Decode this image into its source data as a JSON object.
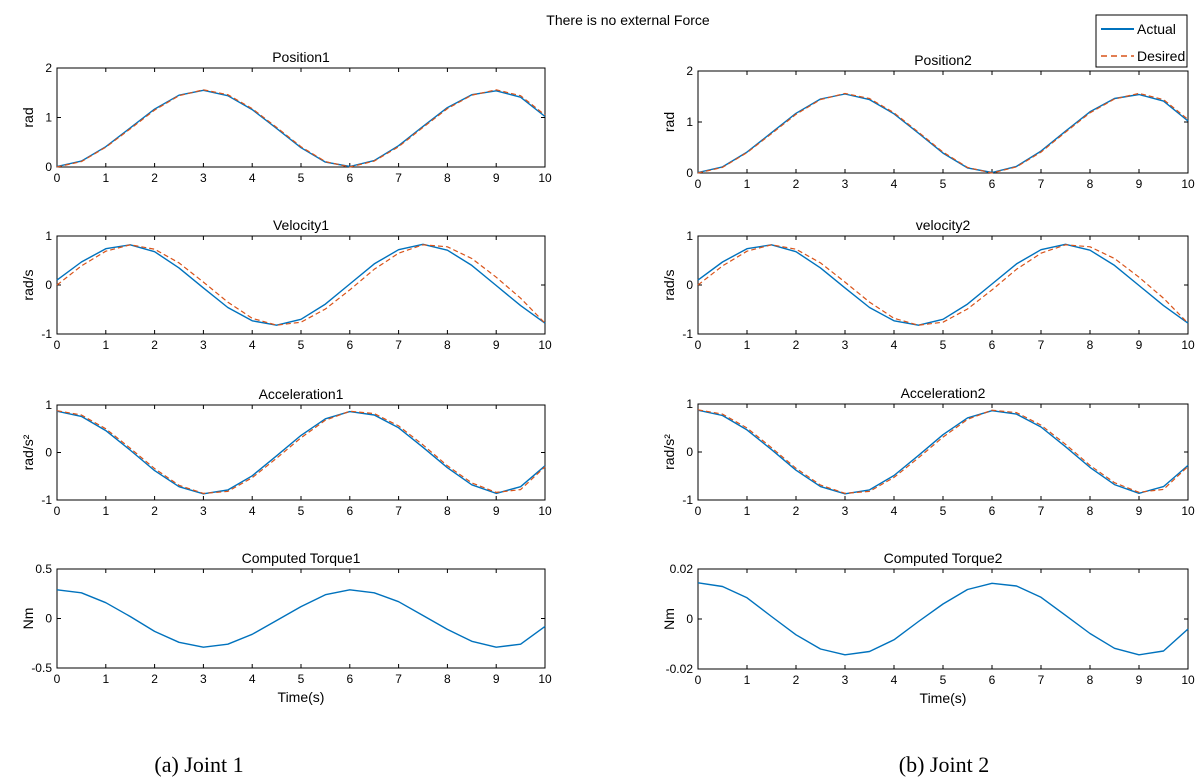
{
  "figure_title": "There is no external Force",
  "captions": [
    "(a) Joint 1",
    "(b) Joint 2"
  ],
  "legend": [
    "Actual",
    "Desired"
  ],
  "colors": {
    "actual": "#0072BD",
    "desired": "#D95319",
    "axis": "#000000"
  },
  "chart_data": [
    {
      "type": "line",
      "title": "Position1",
      "xlabel": "",
      "ylabel": "rad",
      "xlim": [
        0,
        10
      ],
      "ylim": [
        0,
        2
      ],
      "xticks": [
        0,
        1,
        2,
        3,
        4,
        5,
        6,
        7,
        8,
        9,
        10
      ],
      "yticks": [
        0,
        1,
        2
      ],
      "ytick_labels": [
        "0",
        "1",
        "2"
      ],
      "series": [
        {
          "name": "Actual",
          "style": "solid",
          "x": [
            0,
            0.5,
            1,
            1.5,
            2,
            2.5,
            3,
            3.5,
            4,
            4.5,
            5,
            5.5,
            6,
            6.5,
            7,
            7.5,
            8,
            8.5,
            9,
            9.5,
            10
          ],
          "y": [
            0.01,
            0.12,
            0.41,
            0.79,
            1.17,
            1.45,
            1.55,
            1.44,
            1.16,
            0.78,
            0.39,
            0.1,
            0.01,
            0.13,
            0.43,
            0.82,
            1.2,
            1.46,
            1.54,
            1.41,
            1.02
          ]
        },
        {
          "name": "Desired",
          "style": "dashed",
          "x": [
            0,
            0.5,
            1,
            1.5,
            2,
            2.5,
            3,
            3.5,
            4,
            4.5,
            5,
            5.5,
            6,
            6.5,
            7,
            7.5,
            8,
            8.5,
            9,
            9.5,
            10
          ],
          "y": [
            0.0,
            0.11,
            0.4,
            0.77,
            1.15,
            1.44,
            1.56,
            1.46,
            1.18,
            0.8,
            0.41,
            0.11,
            0.0,
            0.12,
            0.41,
            0.8,
            1.18,
            1.45,
            1.56,
            1.44,
            1.05
          ]
        }
      ]
    },
    {
      "type": "line",
      "title": "Velocity1",
      "xlabel": "",
      "ylabel": "rad/s",
      "xlim": [
        0,
        10
      ],
      "ylim": [
        -1,
        1
      ],
      "xticks": [
        0,
        1,
        2,
        3,
        4,
        5,
        6,
        7,
        8,
        9,
        10
      ],
      "yticks": [
        -1,
        0,
        1
      ],
      "ytick_labels": [
        "-1",
        "0",
        "1"
      ],
      "series": [
        {
          "name": "Actual",
          "style": "solid",
          "x": [
            0,
            0.5,
            1,
            1.5,
            2,
            2.5,
            3,
            3.5,
            4,
            4.5,
            5,
            5.5,
            6,
            6.5,
            7,
            7.5,
            8,
            8.5,
            9,
            9.5,
            10
          ],
          "y": [
            0.1,
            0.47,
            0.74,
            0.82,
            0.68,
            0.35,
            -0.06,
            -0.46,
            -0.73,
            -0.82,
            -0.7,
            -0.39,
            0.02,
            0.43,
            0.72,
            0.83,
            0.71,
            0.4,
            -0.01,
            -0.42,
            -0.78
          ]
        },
        {
          "name": "Desired",
          "style": "dashed",
          "x": [
            0,
            0.5,
            1,
            1.5,
            2,
            2.5,
            3,
            3.5,
            4,
            4.5,
            5,
            5.5,
            6,
            6.5,
            7,
            7.5,
            8,
            8.5,
            9,
            9.5,
            10
          ],
          "y": [
            0.0,
            0.39,
            0.69,
            0.82,
            0.73,
            0.45,
            0.06,
            -0.35,
            -0.68,
            -0.82,
            -0.76,
            -0.49,
            -0.1,
            0.32,
            0.65,
            0.82,
            0.78,
            0.54,
            0.16,
            -0.27,
            -0.78
          ]
        }
      ]
    },
    {
      "type": "line",
      "title": "Acceleration1",
      "xlabel": "",
      "ylabel": "rad/s²",
      "xlim": [
        0,
        10
      ],
      "ylim": [
        -1,
        1
      ],
      "xticks": [
        0,
        1,
        2,
        3,
        4,
        5,
        6,
        7,
        8,
        9,
        10
      ],
      "yticks": [
        -1,
        0,
        1
      ],
      "ytick_labels": [
        "-1",
        "0",
        "1"
      ],
      "series": [
        {
          "name": "Actual",
          "style": "solid",
          "x": [
            0,
            0.5,
            1,
            1.5,
            2,
            2.5,
            3,
            3.5,
            4,
            4.5,
            5,
            5.5,
            6,
            6.5,
            7,
            7.5,
            8,
            8.5,
            9,
            9.5,
            10
          ],
          "y": [
            0.87,
            0.76,
            0.46,
            0.05,
            -0.38,
            -0.72,
            -0.87,
            -0.79,
            -0.49,
            -0.07,
            0.36,
            0.71,
            0.86,
            0.79,
            0.52,
            0.11,
            -0.32,
            -0.68,
            -0.86,
            -0.72,
            -0.28
          ]
        },
        {
          "name": "Desired",
          "style": "dashed",
          "x": [
            0,
            0.5,
            1,
            1.5,
            2,
            2.5,
            3,
            3.5,
            4,
            4.5,
            5,
            5.5,
            6,
            6.5,
            7,
            7.5,
            8,
            8.5,
            9,
            9.5,
            10
          ],
          "y": [
            0.88,
            0.79,
            0.5,
            0.09,
            -0.34,
            -0.69,
            -0.86,
            -0.82,
            -0.53,
            -0.12,
            0.31,
            0.68,
            0.87,
            0.82,
            0.56,
            0.16,
            -0.28,
            -0.64,
            -0.84,
            -0.78,
            -0.3
          ]
        }
      ]
    },
    {
      "type": "line",
      "title": "Computed Torque1",
      "xlabel": "Time(s)",
      "ylabel": "Nm",
      "xlim": [
        0,
        10
      ],
      "ylim": [
        -0.5,
        0.5
      ],
      "xticks": [
        0,
        1,
        2,
        3,
        4,
        5,
        6,
        7,
        8,
        9,
        10
      ],
      "yticks": [
        -0.5,
        0,
        0.5
      ],
      "ytick_labels": [
        "-0.5",
        "0",
        "0.5"
      ],
      "series": [
        {
          "name": "Actual",
          "style": "solid",
          "x": [
            0,
            0.5,
            1,
            1.5,
            2,
            2.5,
            3,
            3.5,
            4,
            4.5,
            5,
            5.5,
            6,
            6.5,
            7,
            7.5,
            8,
            8.5,
            9,
            9.5,
            10
          ],
          "y": [
            0.29,
            0.26,
            0.16,
            0.02,
            -0.13,
            -0.24,
            -0.29,
            -0.26,
            -0.16,
            -0.02,
            0.12,
            0.24,
            0.29,
            0.26,
            0.17,
            0.03,
            -0.11,
            -0.23,
            -0.29,
            -0.26,
            -0.08
          ]
        }
      ]
    },
    {
      "type": "line",
      "title": "Position2",
      "xlabel": "",
      "ylabel": "rad",
      "xlim": [
        0,
        10
      ],
      "ylim": [
        0,
        2
      ],
      "xticks": [
        0,
        1,
        2,
        3,
        4,
        5,
        6,
        7,
        8,
        9,
        10
      ],
      "yticks": [
        0,
        1,
        2
      ],
      "ytick_labels": [
        "0",
        "1",
        "2"
      ],
      "series": [
        {
          "name": "Actual",
          "style": "solid",
          "x": [
            0,
            0.5,
            1,
            1.5,
            2,
            2.5,
            3,
            3.5,
            4,
            4.5,
            5,
            5.5,
            6,
            6.5,
            7,
            7.5,
            8,
            8.5,
            9,
            9.5,
            10
          ],
          "y": [
            0.01,
            0.12,
            0.41,
            0.79,
            1.17,
            1.45,
            1.55,
            1.44,
            1.16,
            0.78,
            0.39,
            0.1,
            0.01,
            0.13,
            0.43,
            0.82,
            1.2,
            1.46,
            1.54,
            1.41,
            1.02
          ]
        },
        {
          "name": "Desired",
          "style": "dashed",
          "x": [
            0,
            0.5,
            1,
            1.5,
            2,
            2.5,
            3,
            3.5,
            4,
            4.5,
            5,
            5.5,
            6,
            6.5,
            7,
            7.5,
            8,
            8.5,
            9,
            9.5,
            10
          ],
          "y": [
            0.0,
            0.11,
            0.4,
            0.77,
            1.15,
            1.44,
            1.56,
            1.46,
            1.18,
            0.8,
            0.41,
            0.11,
            0.0,
            0.12,
            0.41,
            0.8,
            1.18,
            1.45,
            1.56,
            1.44,
            1.05
          ]
        }
      ]
    },
    {
      "type": "line",
      "title": "velocity2",
      "xlabel": "",
      "ylabel": "rad/s",
      "xlim": [
        0,
        10
      ],
      "ylim": [
        -1,
        1
      ],
      "xticks": [
        0,
        1,
        2,
        3,
        4,
        5,
        6,
        7,
        8,
        9,
        10
      ],
      "yticks": [
        -1,
        0,
        1
      ],
      "ytick_labels": [
        "-1",
        "0",
        "1"
      ],
      "series": [
        {
          "name": "Actual",
          "style": "solid",
          "x": [
            0,
            0.5,
            1,
            1.5,
            2,
            2.5,
            3,
            3.5,
            4,
            4.5,
            5,
            5.5,
            6,
            6.5,
            7,
            7.5,
            8,
            8.5,
            9,
            9.5,
            10
          ],
          "y": [
            0.1,
            0.47,
            0.74,
            0.82,
            0.68,
            0.35,
            -0.06,
            -0.46,
            -0.73,
            -0.82,
            -0.7,
            -0.39,
            0.02,
            0.43,
            0.72,
            0.83,
            0.71,
            0.4,
            -0.01,
            -0.42,
            -0.78
          ]
        },
        {
          "name": "Desired",
          "style": "dashed",
          "x": [
            0,
            0.5,
            1,
            1.5,
            2,
            2.5,
            3,
            3.5,
            4,
            4.5,
            5,
            5.5,
            6,
            6.5,
            7,
            7.5,
            8,
            8.5,
            9,
            9.5,
            10
          ],
          "y": [
            0.0,
            0.39,
            0.69,
            0.82,
            0.73,
            0.45,
            0.06,
            -0.35,
            -0.68,
            -0.82,
            -0.76,
            -0.49,
            -0.1,
            0.32,
            0.65,
            0.82,
            0.78,
            0.54,
            0.16,
            -0.27,
            -0.78
          ]
        }
      ]
    },
    {
      "type": "line",
      "title": "Acceleration2",
      "xlabel": "",
      "ylabel": "rad/s²",
      "xlim": [
        0,
        10
      ],
      "ylim": [
        -1,
        1
      ],
      "xticks": [
        0,
        1,
        2,
        3,
        4,
        5,
        6,
        7,
        8,
        9,
        10
      ],
      "yticks": [
        -1,
        0,
        1
      ],
      "ytick_labels": [
        "-1",
        "0",
        "1"
      ],
      "series": [
        {
          "name": "Actual",
          "style": "solid",
          "x": [
            0,
            0.5,
            1,
            1.5,
            2,
            2.5,
            3,
            3.5,
            4,
            4.5,
            5,
            5.5,
            6,
            6.5,
            7,
            7.5,
            8,
            8.5,
            9,
            9.5,
            10
          ],
          "y": [
            0.87,
            0.76,
            0.46,
            0.05,
            -0.38,
            -0.72,
            -0.87,
            -0.79,
            -0.49,
            -0.07,
            0.36,
            0.71,
            0.86,
            0.79,
            0.52,
            0.11,
            -0.32,
            -0.68,
            -0.86,
            -0.72,
            -0.28
          ]
        },
        {
          "name": "Desired",
          "style": "dashed",
          "x": [
            0,
            0.5,
            1,
            1.5,
            2,
            2.5,
            3,
            3.5,
            4,
            4.5,
            5,
            5.5,
            6,
            6.5,
            7,
            7.5,
            8,
            8.5,
            9,
            9.5,
            10
          ],
          "y": [
            0.88,
            0.79,
            0.5,
            0.09,
            -0.34,
            -0.69,
            -0.86,
            -0.82,
            -0.53,
            -0.12,
            0.31,
            0.68,
            0.87,
            0.82,
            0.56,
            0.16,
            -0.28,
            -0.64,
            -0.84,
            -0.78,
            -0.3
          ]
        }
      ]
    },
    {
      "type": "line",
      "title": "Computed Torque2",
      "xlabel": "Time(s)",
      "ylabel": "Nm",
      "xlim": [
        0,
        10
      ],
      "ylim": [
        -0.02,
        0.02
      ],
      "xticks": [
        0,
        1,
        2,
        3,
        4,
        5,
        6,
        7,
        8,
        9,
        10
      ],
      "yticks": [
        -0.02,
        0,
        0.02
      ],
      "ytick_labels": [
        "-0.02",
        "0",
        "0.02"
      ],
      "series": [
        {
          "name": "Actual",
          "style": "solid",
          "x": [
            0,
            0.5,
            1,
            1.5,
            2,
            2.5,
            3,
            3.5,
            4,
            4.5,
            5,
            5.5,
            6,
            6.5,
            7,
            7.5,
            8,
            8.5,
            9,
            9.5,
            10
          ],
          "y": [
            0.0145,
            0.013,
            0.0085,
            0.001,
            -0.0063,
            -0.012,
            -0.0143,
            -0.013,
            -0.0083,
            -0.001,
            0.006,
            0.0118,
            0.0143,
            0.0132,
            0.0087,
            0.0015,
            -0.0058,
            -0.0117,
            -0.0143,
            -0.0128,
            -0.004
          ]
        }
      ]
    }
  ]
}
